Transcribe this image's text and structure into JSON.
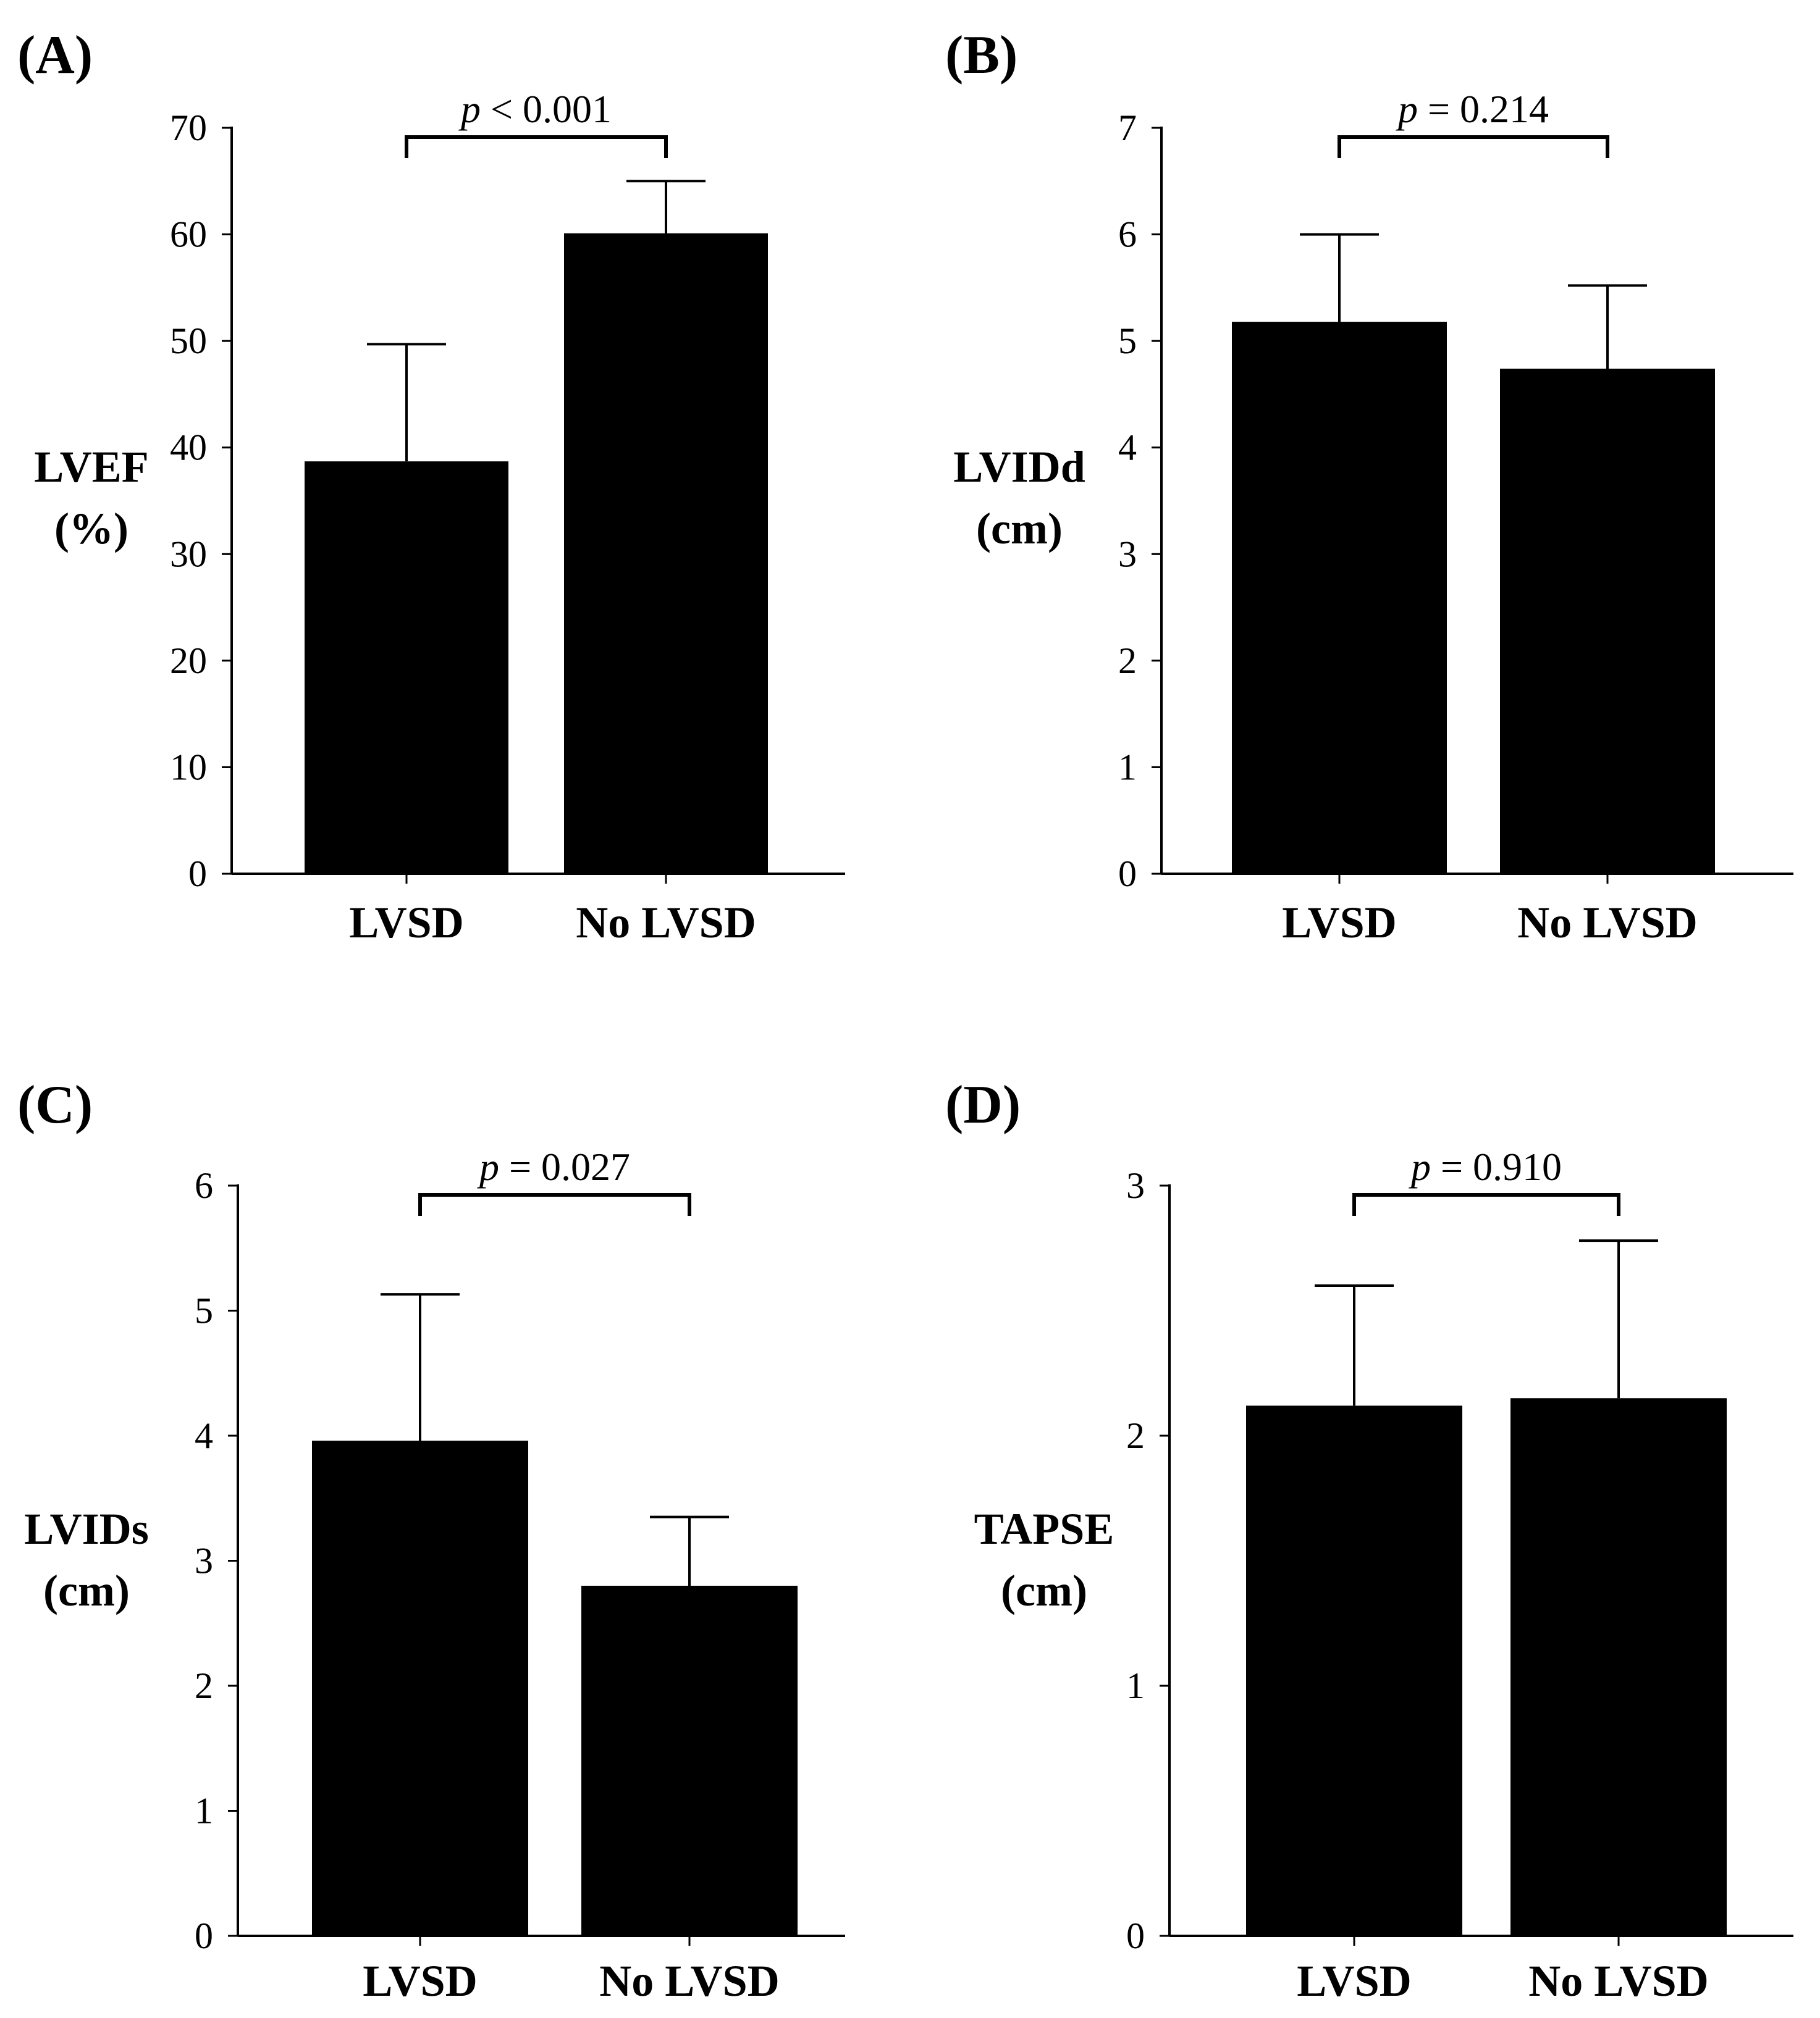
{
  "chart_data": [
    {
      "type": "bar",
      "panel": "(A)",
      "ylabel_lines": [
        "LVEF",
        "(%)"
      ],
      "categories": [
        "LVSD",
        "No LVSD"
      ],
      "values": [
        38.7,
        60.1
      ],
      "errors": [
        11.0,
        4.9
      ],
      "ylim": [
        0,
        70
      ],
      "yticks": [
        0,
        10,
        20,
        30,
        40,
        50,
        60,
        70
      ],
      "pvalue": {
        "p": "p",
        "rest": " < 0.001"
      },
      "color": "#000000"
    },
    {
      "type": "bar",
      "panel": "(B)",
      "ylabel_lines": [
        "LVIDd",
        "(cm)"
      ],
      "categories": [
        "LVSD",
        "No LVSD"
      ],
      "values": [
        5.18,
        4.74
      ],
      "errors": [
        0.82,
        0.78
      ],
      "ylim": [
        0,
        7
      ],
      "yticks": [
        0,
        1,
        2,
        3,
        4,
        5,
        6,
        7
      ],
      "pvalue": {
        "p": "p",
        "rest": " = 0.214"
      },
      "color": "#000000"
    },
    {
      "type": "bar",
      "panel": "(C)",
      "ylabel_lines": [
        "LVIDs",
        "(cm)"
      ],
      "categories": [
        "LVSD",
        "No LVSD"
      ],
      "values": [
        3.96,
        2.8
      ],
      "errors": [
        1.17,
        0.55
      ],
      "ylim": [
        0,
        6
      ],
      "yticks": [
        0,
        1,
        2,
        3,
        4,
        5,
        6
      ],
      "pvalue": {
        "p": "p",
        "rest": " = 0.027"
      },
      "color": "#000000"
    },
    {
      "type": "bar",
      "panel": "(D)",
      "ylabel_lines": [
        "TAPSE",
        "(cm)"
      ],
      "categories": [
        "LVSD",
        "No LVSD"
      ],
      "values": [
        2.12,
        2.15
      ],
      "errors": [
        0.48,
        0.63
      ],
      "ylim": [
        0,
        3
      ],
      "yticks": [
        0,
        1,
        2,
        3
      ],
      "pvalue": {
        "p": "p",
        "rest": " = 0.910"
      },
      "color": "#000000"
    }
  ]
}
